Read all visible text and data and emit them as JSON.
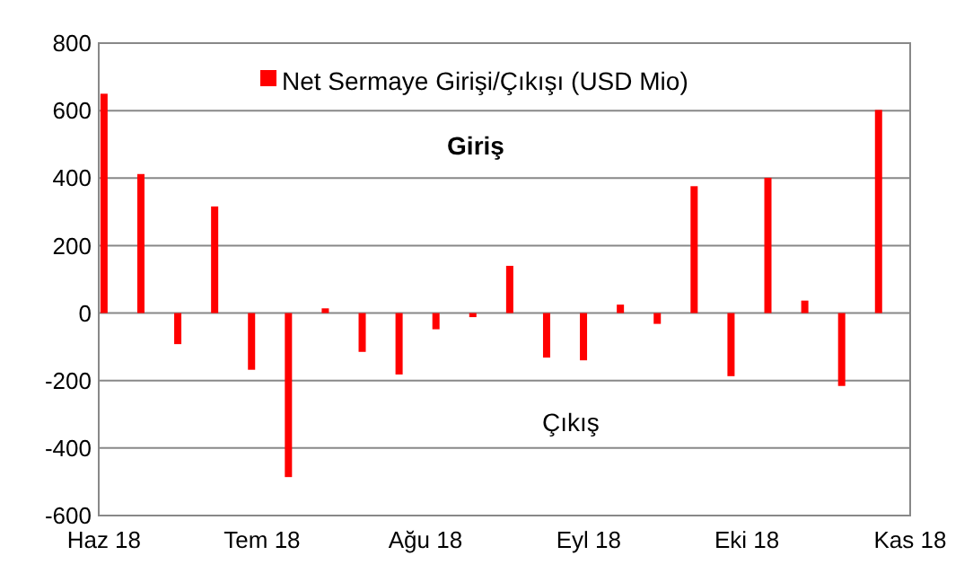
{
  "chart_data": {
    "type": "bar",
    "x": [
      "2018-06-01",
      "2018-06-08",
      "2018-06-15",
      "2018-06-22",
      "2018-06-29",
      "2018-07-06",
      "2018-07-13",
      "2018-07-20",
      "2018-07-27",
      "2018-08-03",
      "2018-08-10",
      "2018-08-17",
      "2018-08-24",
      "2018-08-31",
      "2018-09-07",
      "2018-09-14",
      "2018-09-21",
      "2018-09-28",
      "2018-10-05",
      "2018-10-12",
      "2018-10-19",
      "2018-10-26"
    ],
    "series": [
      {
        "name": "Net Sermaye Girişi/Çıkışı (USD Mio)",
        "color": "#ff0000",
        "values": [
          650,
          412,
          -92,
          316,
          -168,
          -486,
          14,
          -115,
          -182,
          -48,
          -12,
          140,
          -132,
          -140,
          25,
          -32,
          376,
          -187,
          401,
          37,
          -216,
          602
        ]
      }
    ],
    "xlim": [
      "2018-05-31",
      "2018-11-01"
    ],
    "xticks": [
      {
        "value": "2018-06-01",
        "label": "Haz 18"
      },
      {
        "value": "2018-07-01",
        "label": "Tem 18"
      },
      {
        "value": "2018-08-01",
        "label": "Ağu 18"
      },
      {
        "value": "2018-09-01",
        "label": "Eyl 18"
      },
      {
        "value": "2018-10-01",
        "label": "Eki 18"
      },
      {
        "value": "2018-11-01",
        "label": "Kas 18"
      }
    ],
    "ylim": [
      -600,
      800
    ],
    "yticks": [
      -600,
      -400,
      -200,
      0,
      200,
      400,
      600,
      800
    ],
    "annotations": [
      "Giriş",
      "Çıkış"
    ],
    "grid": "y",
    "legend": "top"
  }
}
